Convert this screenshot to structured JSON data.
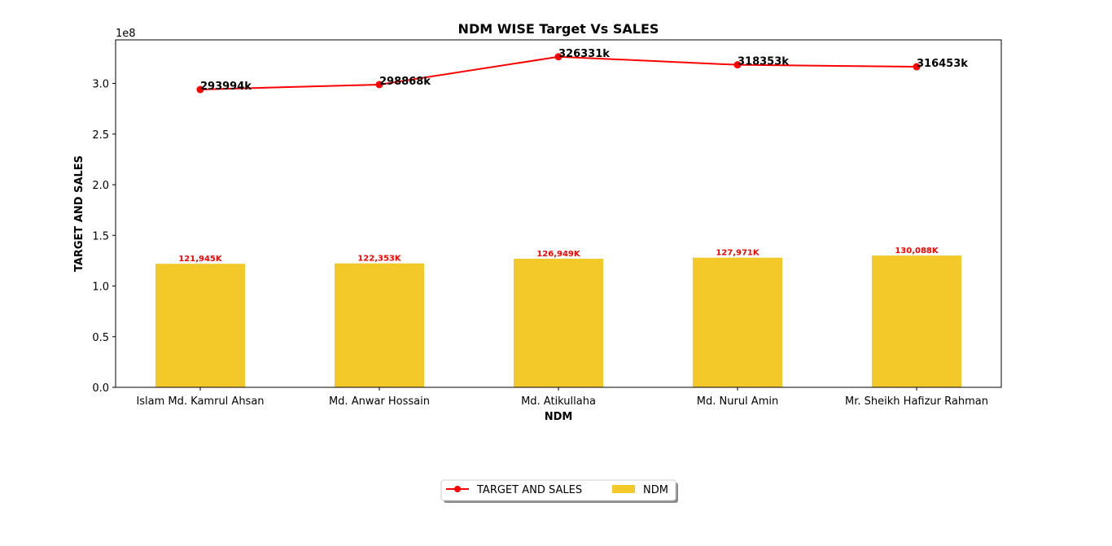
{
  "chart_data": {
    "type": "bar",
    "title": "NDM WISE Target Vs SALES",
    "xlabel": "NDM",
    "ylabel": "TARGET AND SALES",
    "y_offset_label": "1e8",
    "ylim": [
      0,
      343000000
    ],
    "yticks": [
      0,
      50000000,
      100000000,
      150000000,
      200000000,
      250000000,
      300000000
    ],
    "ytick_labels": [
      "0.0",
      "0.5",
      "1.0",
      "1.5",
      "2.0",
      "2.5",
      "3.0"
    ],
    "categories": [
      "Islam Md. Kamrul Ahsan",
      "Md. Anwar Hossain",
      "Md. Atikullaha",
      "Md. Nurul Amin",
      "Mr. Sheikh Hafizur Rahman"
    ],
    "series": [
      {
        "name": "NDM",
        "kind": "bar",
        "color": "#f2c928",
        "values": [
          121945000,
          122353000,
          126949000,
          127971000,
          130088000
        ],
        "labels": [
          "121,945K",
          "122,353K",
          "126,949K",
          "127,971K",
          "130,088K"
        ],
        "label_color": "#ff0000"
      },
      {
        "name": "TARGET AND SALES",
        "kind": "line",
        "color": "#ff0000",
        "values": [
          293994000,
          298868000,
          326331000,
          318353000,
          316453000
        ],
        "labels": [
          "293994k",
          "298868k",
          "326331k",
          "318353k",
          "316453k"
        ]
      }
    ],
    "legend": {
      "placement": "bottom-center",
      "entries": [
        "TARGET AND SALES",
        "NDM"
      ]
    },
    "grid": false
  }
}
